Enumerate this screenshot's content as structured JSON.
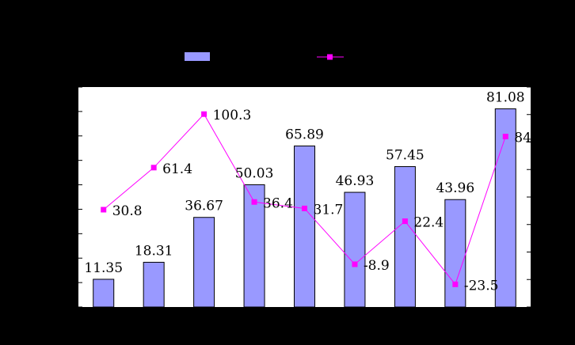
{
  "chart_data": {
    "type": "bar",
    "categories": [
      "",
      "",
      "",
      "",
      "",
      "",
      "",
      "",
      ""
    ],
    "series": [
      {
        "kind": "bar",
        "values": [
          11.35,
          18.31,
          36.67,
          50.03,
          65.89,
          46.93,
          57.45,
          43.96,
          81.08
        ],
        "labels": [
          "11.35",
          "18.31",
          "36.67",
          "50.03",
          "65.89",
          "46.93",
          "57.45",
          "43.96",
          "81.08"
        ],
        "color": "#9999FF",
        "axis": "left"
      },
      {
        "kind": "line",
        "values": [
          30.8,
          61.4,
          100.3,
          36.4,
          31.7,
          -8.9,
          22.4,
          -23.5,
          84
        ],
        "labels": [
          "30.8",
          "61.4",
          "100.3",
          "36.4",
          "31.7",
          "-8.9",
          "22.4",
          "-23.5",
          "84"
        ],
        "color": "#FF00FF",
        "axis": "right"
      }
    ],
    "left_axis": {
      "ylim": [
        0,
        90
      ]
    },
    "right_axis": {
      "ylim": [
        -40,
        120
      ]
    },
    "legend": "top-center",
    "grid": false,
    "background": "#000000",
    "plot_background": "#FFFFFF"
  }
}
